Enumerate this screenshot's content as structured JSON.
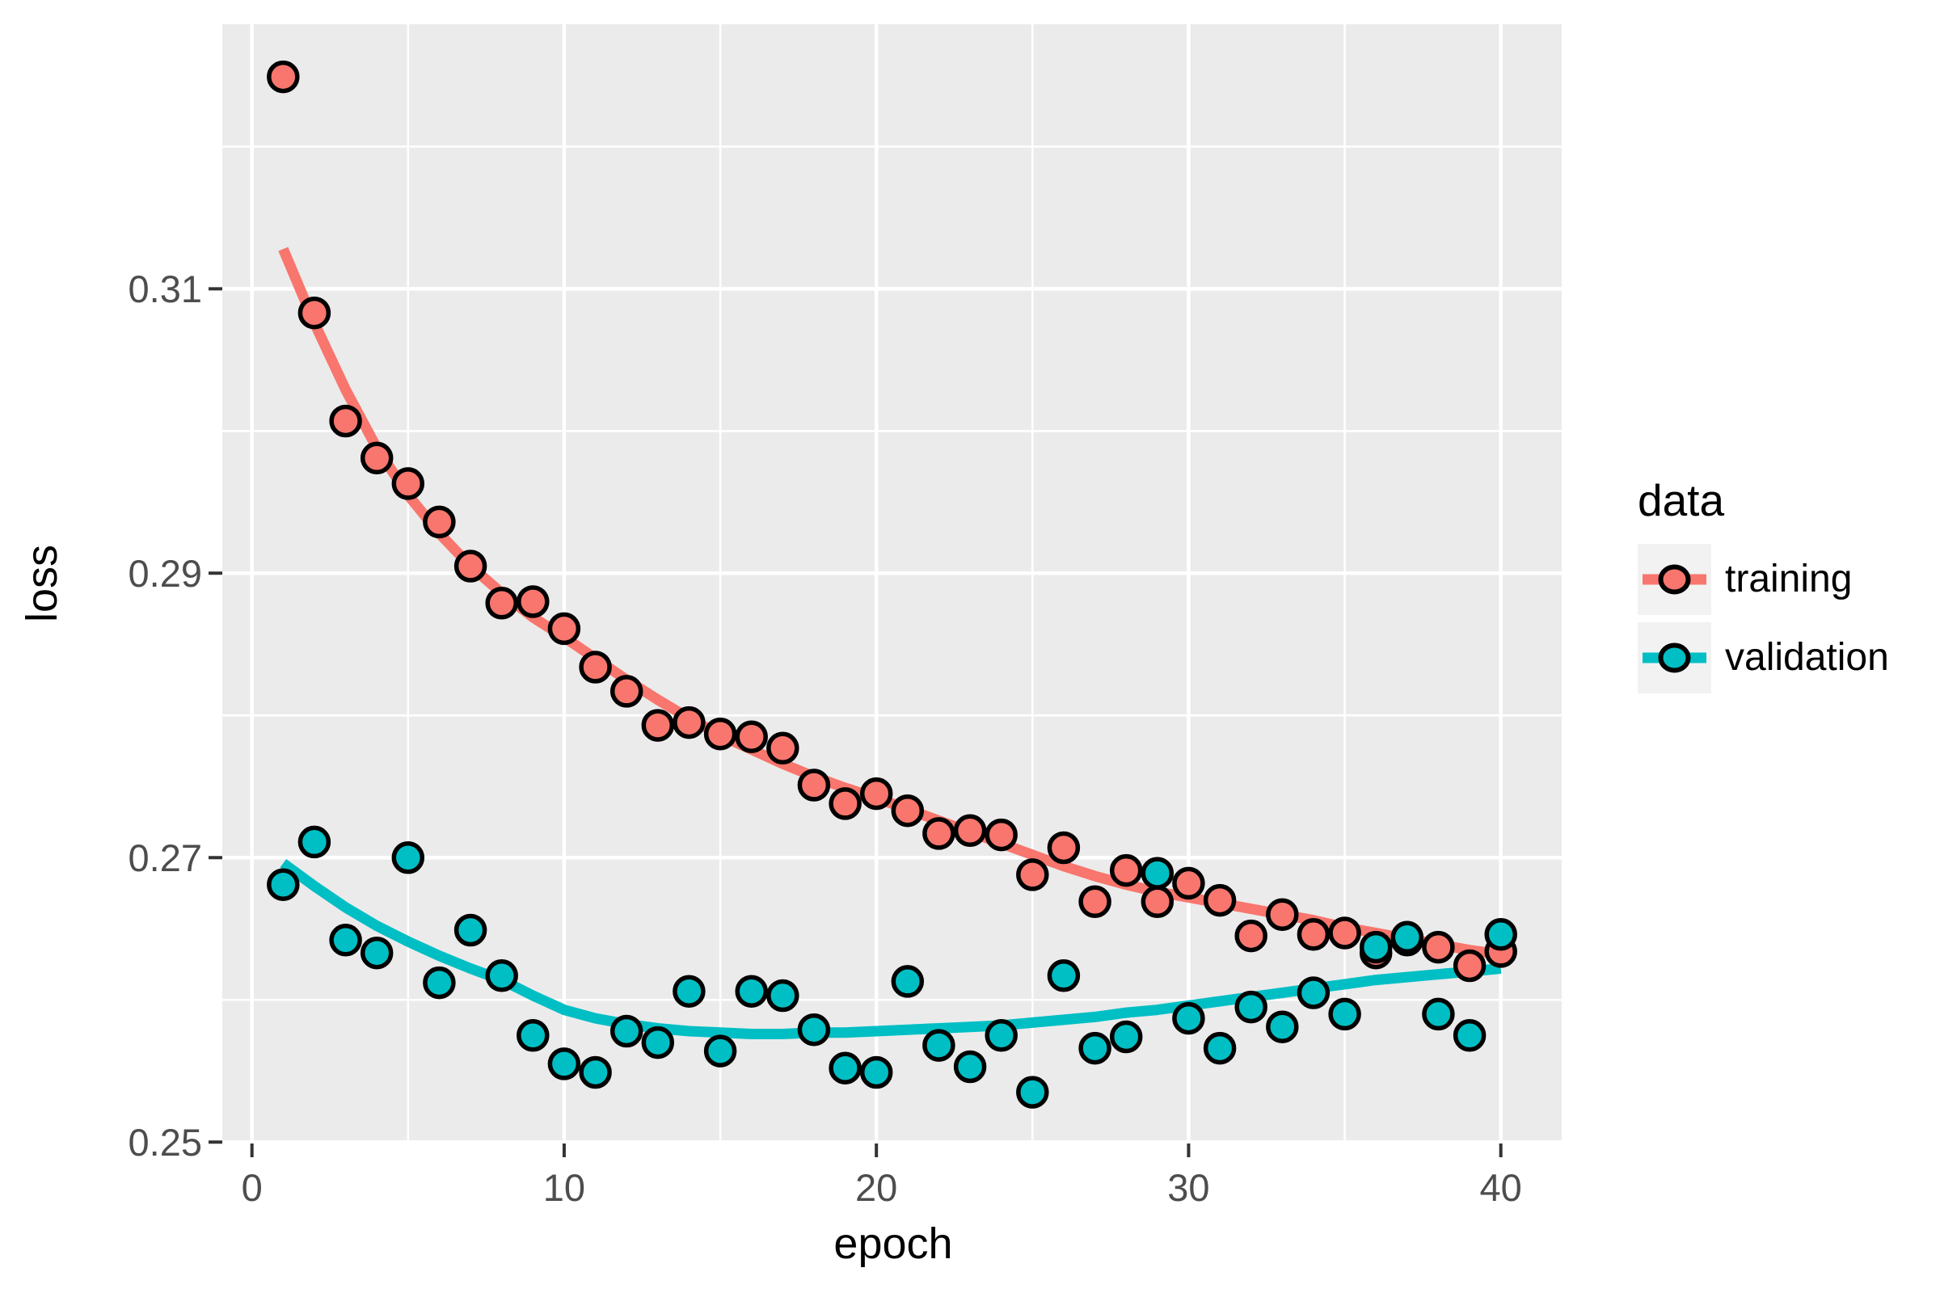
{
  "chart_data": {
    "type": "scatter",
    "title": "",
    "xlabel": "epoch",
    "ylabel": "loss",
    "xlim": [
      -0.95,
      41.95
    ],
    "ylim": [
      0.2499,
      0.3286
    ],
    "grid": "major+minor",
    "legend_position": "right",
    "x_major_ticks": [
      0,
      10,
      20,
      30,
      40
    ],
    "x_minor_ticks": [
      5,
      15,
      25,
      35
    ],
    "y_major_ticks": [
      0.25,
      0.27,
      0.29,
      0.31
    ],
    "y_minor_ticks": [
      0.26,
      0.28,
      0.3,
      0.32
    ],
    "x_tick_labels": [
      "0",
      "10",
      "20",
      "30",
      "40"
    ],
    "y_tick_labels": [
      "0.25",
      "0.27",
      "0.29",
      "0.31"
    ],
    "x": [
      1,
      2,
      3,
      4,
      5,
      6,
      7,
      8,
      9,
      10,
      11,
      12,
      13,
      14,
      15,
      16,
      17,
      18,
      19,
      20,
      21,
      22,
      23,
      24,
      25,
      26,
      27,
      28,
      29,
      30,
      31,
      32,
      33,
      34,
      35,
      36,
      37,
      38,
      39,
      40
    ],
    "series": [
      {
        "name": "training",
        "color": "#F8766D",
        "values": [
          0.3249,
          0.3083,
          0.3007,
          0.2981,
          0.2963,
          0.2936,
          0.2905,
          0.2879,
          0.288,
          0.2861,
          0.2834,
          0.2817,
          0.2793,
          0.2795,
          0.2787,
          0.2785,
          0.2777,
          0.2751,
          0.2738,
          0.2745,
          0.2733,
          0.2717,
          0.2719,
          0.2716,
          0.2688,
          0.2707,
          0.2669,
          0.2691,
          0.2669,
          0.2682,
          0.267,
          0.2645,
          0.266,
          0.2646,
          0.2647,
          0.2633,
          0.2642,
          0.2637,
          0.2624,
          0.2634
        ],
        "smooth": [
          0.3128,
          0.3076,
          0.3029,
          0.2988,
          0.2955,
          0.2928,
          0.2905,
          0.2886,
          0.2869,
          0.2855,
          0.284,
          0.2825,
          0.2811,
          0.2798,
          0.2786,
          0.2776,
          0.2766,
          0.2757,
          0.2749,
          0.2742,
          0.2734,
          0.2726,
          0.2718,
          0.271,
          0.2702,
          0.2694,
          0.2687,
          0.2681,
          0.2676,
          0.2672,
          0.2668,
          0.2664,
          0.266,
          0.2656,
          0.2651,
          0.2647,
          0.2643,
          0.2639,
          0.2635,
          0.2632
        ]
      },
      {
        "name": "validation",
        "color": "#00BFC4",
        "values": [
          0.2681,
          0.2711,
          0.2642,
          0.2633,
          0.27,
          0.2612,
          0.2649,
          0.2617,
          0.2575,
          0.2555,
          0.2549,
          0.2578,
          0.257,
          0.2606,
          0.2564,
          0.2606,
          0.2603,
          0.2579,
          0.2552,
          0.2549,
          0.2613,
          0.2568,
          0.2553,
          0.2575,
          0.2535,
          0.2617,
          0.2566,
          0.2574,
          0.2689,
          0.2587,
          0.2566,
          0.2595,
          0.2581,
          0.2605,
          0.259,
          0.2637,
          0.2644,
          0.259,
          0.2575,
          0.2646
        ],
        "smooth": [
          0.2696,
          0.268,
          0.2665,
          0.2652,
          0.2641,
          0.2631,
          0.2622,
          0.2614,
          0.2603,
          0.2593,
          0.2587,
          0.2583,
          0.258,
          0.2578,
          0.2577,
          0.2576,
          0.2576,
          0.2577,
          0.2577,
          0.2578,
          0.2579,
          0.258,
          0.2581,
          0.2582,
          0.2584,
          0.2586,
          0.2588,
          0.2591,
          0.2593,
          0.2596,
          0.2599,
          0.2602,
          0.2605,
          0.2608,
          0.2611,
          0.2614,
          0.2616,
          0.2618,
          0.262,
          0.2622
        ]
      }
    ]
  },
  "legend": {
    "title": "data",
    "items": [
      {
        "label": "training",
        "color": "#F8766D"
      },
      {
        "label": "validation",
        "color": "#00BFC4"
      }
    ]
  },
  "icons": [
    {
      "name": "training-key-glyph",
      "shape": "line-with-circle",
      "color": "#F8766D"
    },
    {
      "name": "validation-key-glyph",
      "shape": "line-with-circle",
      "color": "#00BFC4"
    }
  ],
  "colors": {
    "figure_bg": "#FFFFFF",
    "panel_bg": "#EBEBEB",
    "gridline": "#FFFFFF",
    "tick_mark": "#333333",
    "tick_text": "#4D4D4D",
    "axis_title_text": "#000000",
    "legend_key_bg": "#F2F2F2",
    "point_stroke": "#000000",
    "training": "#F8766D",
    "validation": "#00BFC4"
  }
}
